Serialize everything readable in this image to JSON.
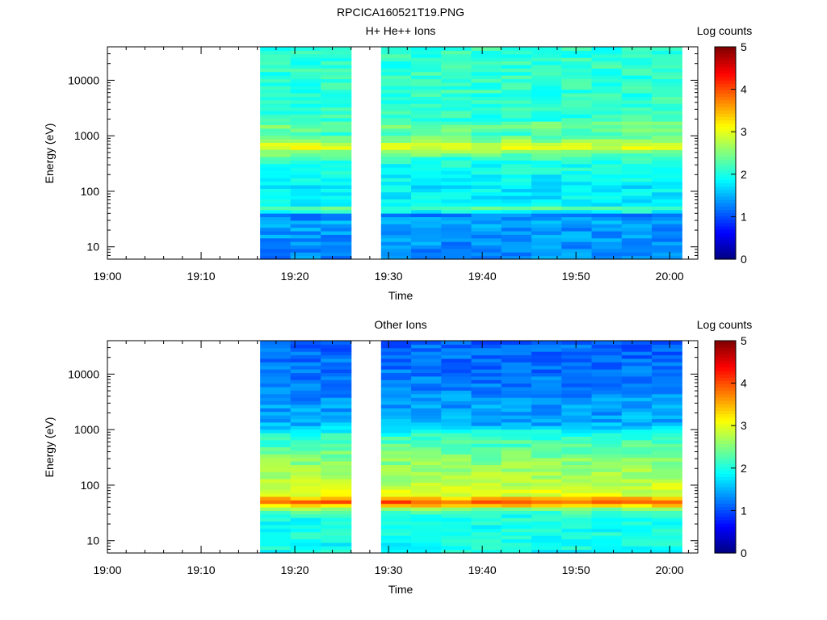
{
  "figure_title": "RPCICA160521T19.PNG",
  "chart_data": [
    {
      "type": "heatmap",
      "title": "H+ He++ Ions",
      "xlabel": "Time",
      "ylabel": "Energy (eV)",
      "colorbar_label": "Log counts",
      "x_ticks": [
        "19:00",
        "19:10",
        "19:20",
        "19:30",
        "19:40",
        "19:50",
        "20:00"
      ],
      "xlim_minutes": [
        0,
        63
      ],
      "y_scale": "log",
      "ylim": [
        6,
        40000
      ],
      "y_ticks": [
        10,
        100,
        1000,
        10000
      ],
      "y_tick_labels": [
        "10",
        "100",
        "1000",
        "10000"
      ],
      "colorbar_ticks": [
        "0",
        "1",
        "2",
        "3",
        "4",
        "5"
      ],
      "clim": [
        0,
        5
      ],
      "data_intervals_minutes": [
        [
          16.3,
          26.0
        ],
        [
          29.2,
          61.3
        ]
      ],
      "spectrum_profile": [
        {
          "energy_ev": 6,
          "log_counts": 1.3
        },
        {
          "energy_ev": 30,
          "log_counts": 1.4
        },
        {
          "energy_ev": 38,
          "log_counts": 1.2
        },
        {
          "energy_ev": 40,
          "log_counts": 1.7
        },
        {
          "energy_ev": 50,
          "log_counts": 2.3
        },
        {
          "energy_ev": 60,
          "log_counts": 1.8
        },
        {
          "energy_ev": 120,
          "log_counts": 1.8
        },
        {
          "energy_ev": 200,
          "log_counts": 1.9
        },
        {
          "energy_ev": 350,
          "log_counts": 2.0
        },
        {
          "energy_ev": 500,
          "log_counts": 2.5
        },
        {
          "energy_ev": 650,
          "log_counts": 3.1
        },
        {
          "energy_ev": 800,
          "log_counts": 2.6
        },
        {
          "energy_ev": 1100,
          "log_counts": 2.2
        },
        {
          "energy_ev": 1500,
          "log_counts": 2.5
        },
        {
          "energy_ev": 2000,
          "log_counts": 2.1
        },
        {
          "energy_ev": 10000,
          "log_counts": 2.1
        },
        {
          "energy_ev": 40000,
          "log_counts": 2.1
        }
      ]
    },
    {
      "type": "heatmap",
      "title": "Other Ions",
      "xlabel": "Time",
      "ylabel": "Energy (eV)",
      "colorbar_label": "Log counts",
      "x_ticks": [
        "19:00",
        "19:10",
        "19:20",
        "19:30",
        "19:40",
        "19:50",
        "20:00"
      ],
      "xlim_minutes": [
        0,
        63
      ],
      "y_scale": "log",
      "ylim": [
        6,
        40000
      ],
      "y_ticks": [
        10,
        100,
        1000,
        10000
      ],
      "y_tick_labels": [
        "10",
        "100",
        "1000",
        "10000"
      ],
      "colorbar_ticks": [
        "0",
        "1",
        "2",
        "3",
        "4",
        "5"
      ],
      "clim": [
        0,
        5
      ],
      "data_intervals_minutes": [
        [
          16.3,
          26.0
        ],
        [
          29.2,
          61.3
        ]
      ],
      "spectrum_profile": [
        {
          "energy_ev": 6,
          "log_counts": 1.9
        },
        {
          "energy_ev": 30,
          "log_counts": 2.0
        },
        {
          "energy_ev": 40,
          "log_counts": 2.7
        },
        {
          "energy_ev": 48,
          "log_counts": 4.1
        },
        {
          "energy_ev": 56,
          "log_counts": 3.6
        },
        {
          "energy_ev": 65,
          "log_counts": 3.0
        },
        {
          "energy_ev": 100,
          "log_counts": 2.8
        },
        {
          "energy_ev": 300,
          "log_counts": 2.5
        },
        {
          "energy_ev": 800,
          "log_counts": 2.1
        },
        {
          "energy_ev": 1200,
          "log_counts": 1.5
        },
        {
          "energy_ev": 10000,
          "log_counts": 1.2
        },
        {
          "energy_ev": 40000,
          "log_counts": 1.1
        }
      ]
    }
  ]
}
